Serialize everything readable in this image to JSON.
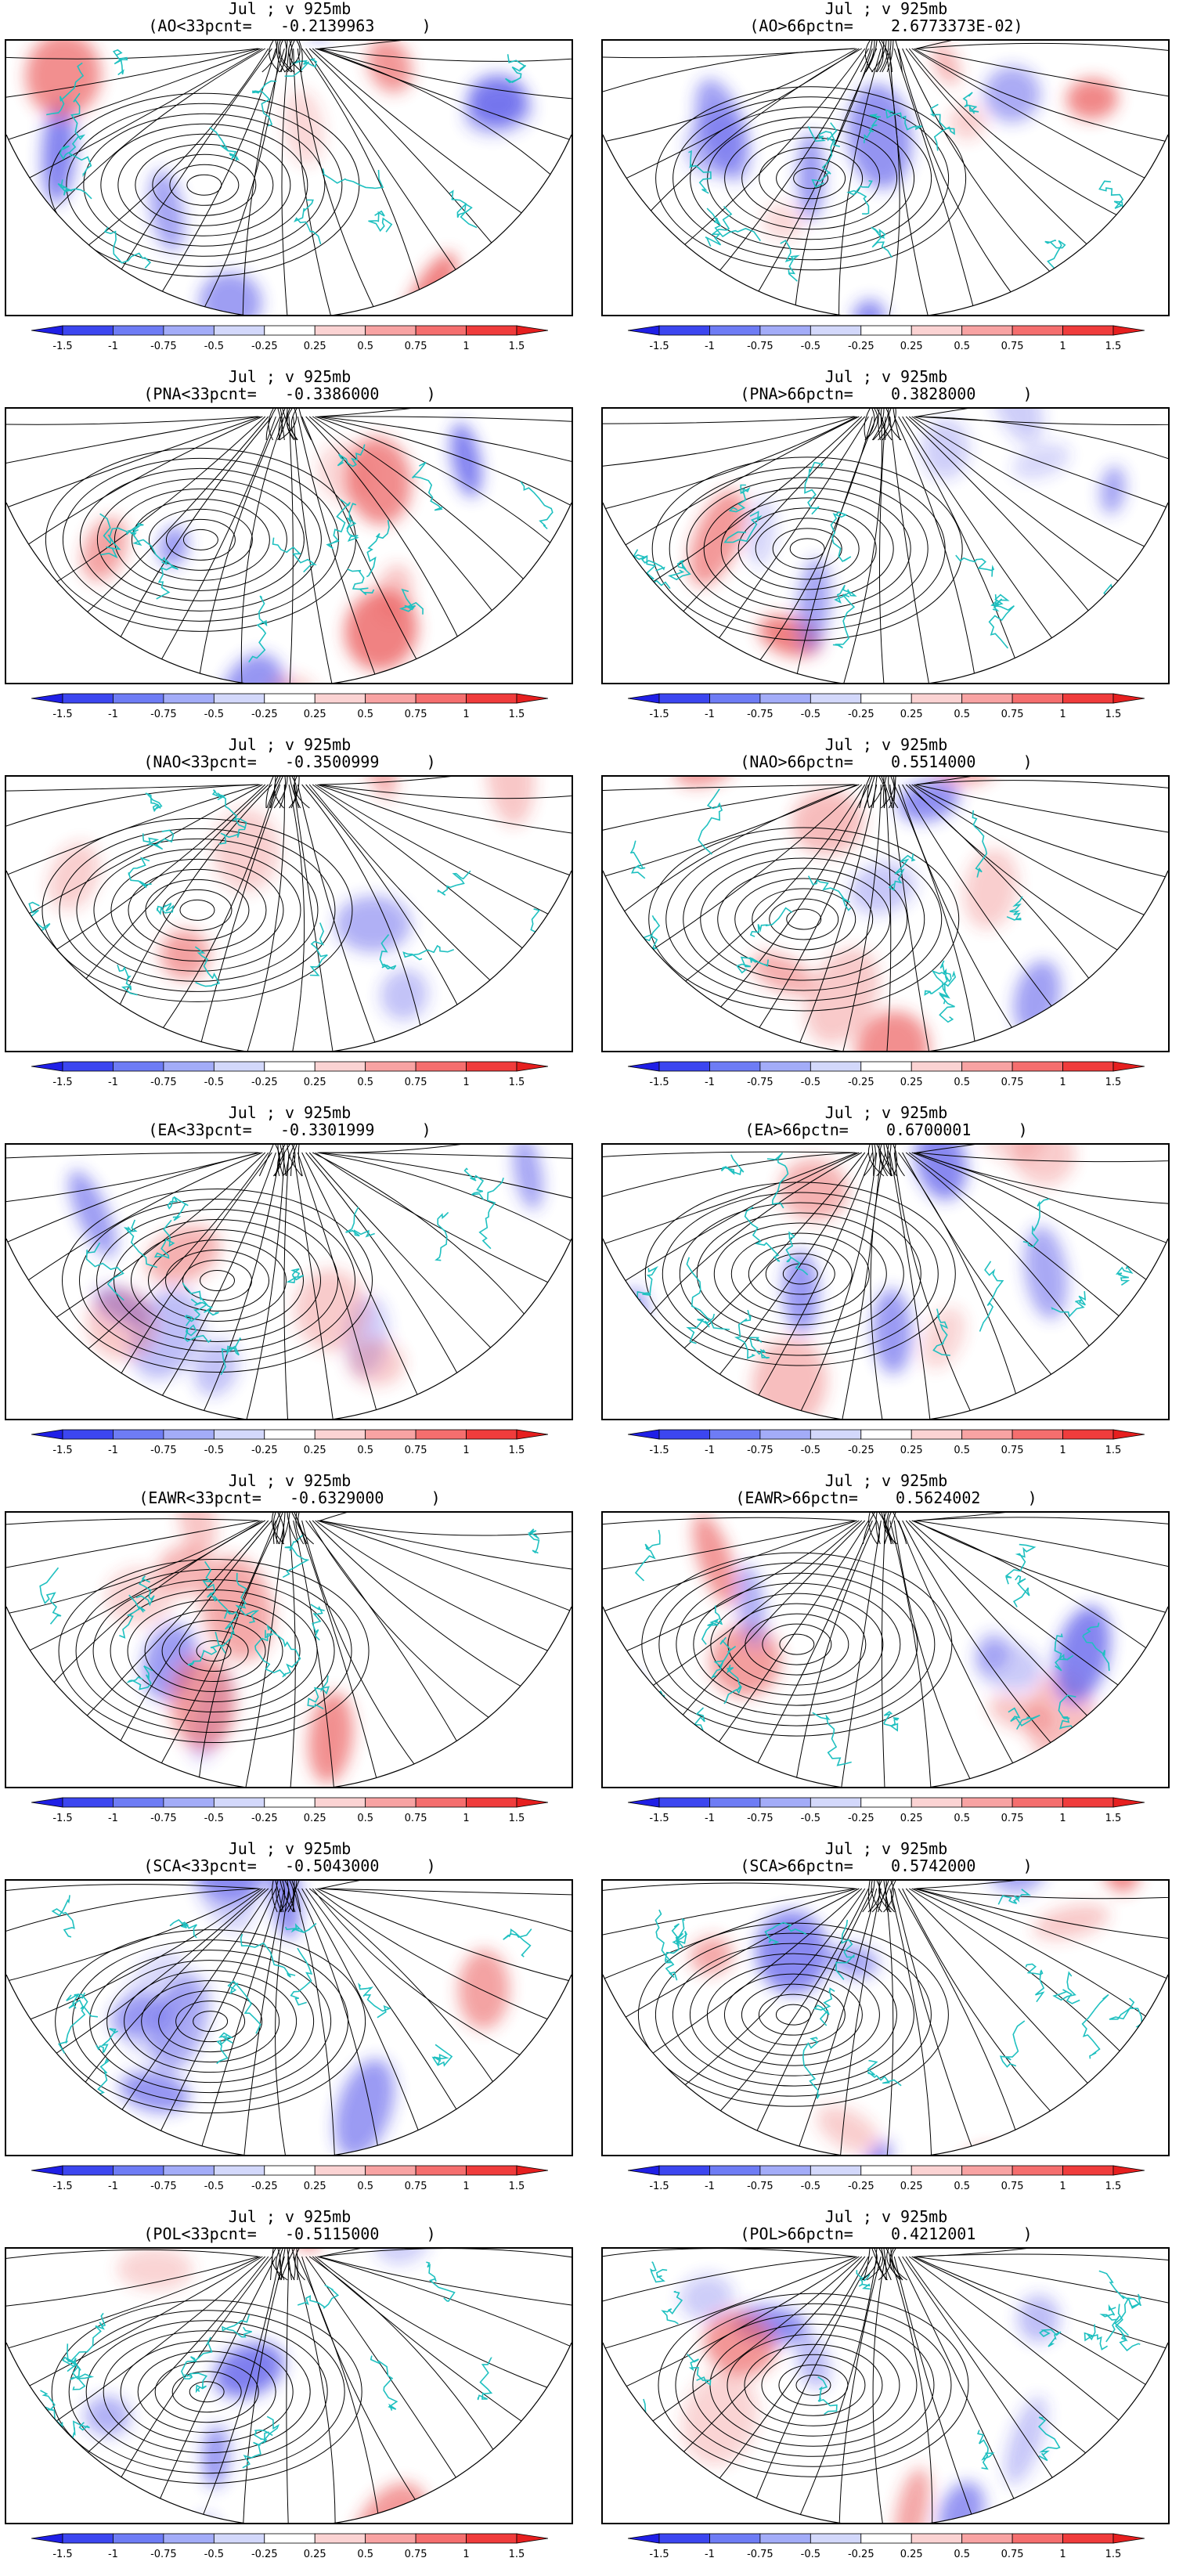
{
  "panels": [
    {
      "line1": "Jul ; v 925mb",
      "line2": "(AO<33pcnt=   -0.2139963     )"
    },
    {
      "line1": "Jul ; v 925mb",
      "line2": "(AO>66pctn=    2.6773373E-02)"
    },
    {
      "line1": "Jul ; v 925mb",
      "line2": "(PNA<33pcnt=   -0.3386000     )"
    },
    {
      "line1": "Jul ; v 925mb",
      "line2": "(PNA>66pctn=    0.3828000     )"
    },
    {
      "line1": "Jul ; v 925mb",
      "line2": "(NAO<33pcnt=   -0.3500999     )"
    },
    {
      "line1": "Jul ; v 925mb",
      "line2": "(NAO>66pctn=    0.5514000     )"
    },
    {
      "line1": "Jul ; v 925mb",
      "line2": "(EA<33pcnt=   -0.3301999     )"
    },
    {
      "line1": "Jul ; v 925mb",
      "line2": "(EA>66pctn=    0.6700001     )"
    },
    {
      "line1": "Jul ; v 925mb",
      "line2": "(EAWR<33pcnt=   -0.6329000     )"
    },
    {
      "line1": "Jul ; v 925mb",
      "line2": "(EAWR>66pctn=    0.5624002     )"
    },
    {
      "line1": "Jul ; v 925mb",
      "line2": "(SCA<33pcnt=   -0.5043000     )"
    },
    {
      "line1": "Jul ; v 925mb",
      "line2": "(SCA>66pctn=    0.5742000     )"
    },
    {
      "line1": "Jul ; v 925mb",
      "line2": "(POL<33pcnt=   -0.5115000     )"
    },
    {
      "line1": "Jul ; v 925mb",
      "line2": "(POL>66pctn=    0.4212001     )"
    }
  ],
  "colorbar": {
    "labels": [
      "-1.5",
      "-1",
      "-0.75",
      "-0.5",
      "-0.25",
      "0.25",
      "0.5",
      "0.75",
      "1",
      "1.5"
    ],
    "colors": [
      "#1f1fe6",
      "#3c46f0",
      "#6e7cf5",
      "#a3acf8",
      "#d3d8fb",
      "#ffffff",
      "#fbd3d3",
      "#f8a3a3",
      "#f56e6e",
      "#f03c3c",
      "#e61f1f"
    ]
  },
  "colors": {
    "coastline": "#1fc0c0",
    "streamline": "#000000",
    "positive": "#e63232",
    "negative": "#3232e6"
  }
}
